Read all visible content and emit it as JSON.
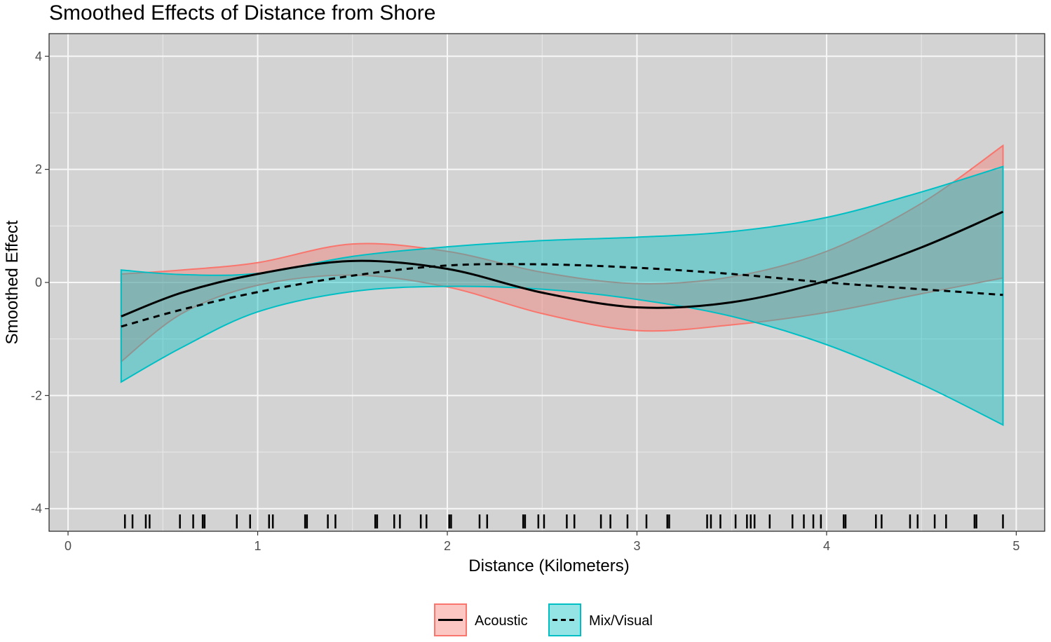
{
  "chart_data": {
    "type": "line",
    "title": "Smoothed Effects of Distance from Shore",
    "xlabel": "Distance (Kilometers)",
    "ylabel": "Smoothed Effect",
    "xlim": [
      -0.1,
      5.15
    ],
    "ylim": [
      -4.4,
      4.4
    ],
    "x_ticks": [
      0,
      1,
      2,
      3,
      4,
      5
    ],
    "y_ticks": [
      -4,
      -2,
      0,
      2,
      4
    ],
    "grid": true,
    "legend_position": "bottom",
    "series": [
      {
        "name": "Acoustic",
        "color": "#F8766D",
        "line_style": "solid",
        "x": [
          0.28,
          0.6,
          1.0,
          1.5,
          2.0,
          2.5,
          3.0,
          3.5,
          4.0,
          4.5,
          4.93
        ],
        "fit": [
          -0.6,
          -0.18,
          0.15,
          0.38,
          0.24,
          -0.18,
          -0.44,
          -0.35,
          0.03,
          0.62,
          1.25
        ],
        "lower": [
          -1.4,
          -0.55,
          -0.05,
          0.13,
          -0.08,
          -0.55,
          -0.85,
          -0.75,
          -0.53,
          -0.2,
          0.08
        ],
        "upper": [
          0.15,
          0.22,
          0.35,
          0.68,
          0.55,
          0.18,
          -0.02,
          0.1,
          0.55,
          1.4,
          2.42
        ]
      },
      {
        "name": "Mix/Visual",
        "color": "#00BFC4",
        "line_style": "dashed",
        "x": [
          0.28,
          0.6,
          1.0,
          1.5,
          2.0,
          2.5,
          3.0,
          3.5,
          4.0,
          4.5,
          4.93
        ],
        "fit": [
          -0.78,
          -0.48,
          -0.17,
          0.12,
          0.3,
          0.32,
          0.26,
          0.15,
          0.0,
          -0.12,
          -0.22
        ],
        "lower": [
          -1.76,
          -1.15,
          -0.52,
          -0.16,
          -0.07,
          -0.12,
          -0.3,
          -0.6,
          -1.1,
          -1.8,
          -2.52
        ],
        "upper": [
          0.22,
          0.14,
          0.16,
          0.46,
          0.63,
          0.74,
          0.8,
          0.9,
          1.15,
          1.6,
          2.05
        ]
      }
    ],
    "rug_x": [
      0.3,
      0.34,
      0.41,
      0.43,
      0.59,
      0.66,
      0.71,
      0.72,
      0.89,
      0.96,
      1.06,
      1.08,
      1.25,
      1.26,
      1.37,
      1.41,
      1.62,
      1.63,
      1.72,
      1.75,
      1.86,
      1.89,
      2.01,
      2.02,
      2.17,
      2.21,
      2.4,
      2.41,
      2.48,
      2.51,
      2.63,
      2.67,
      2.81,
      2.86,
      2.95,
      3.05,
      3.16,
      3.17,
      3.37,
      3.39,
      3.44,
      3.52,
      3.58,
      3.6,
      3.62,
      3.7,
      3.82,
      3.88,
      3.93,
      3.97,
      4.09,
      4.1,
      4.26,
      4.29,
      4.44,
      4.48,
      4.57,
      4.63,
      4.78,
      4.79,
      4.93
    ]
  }
}
